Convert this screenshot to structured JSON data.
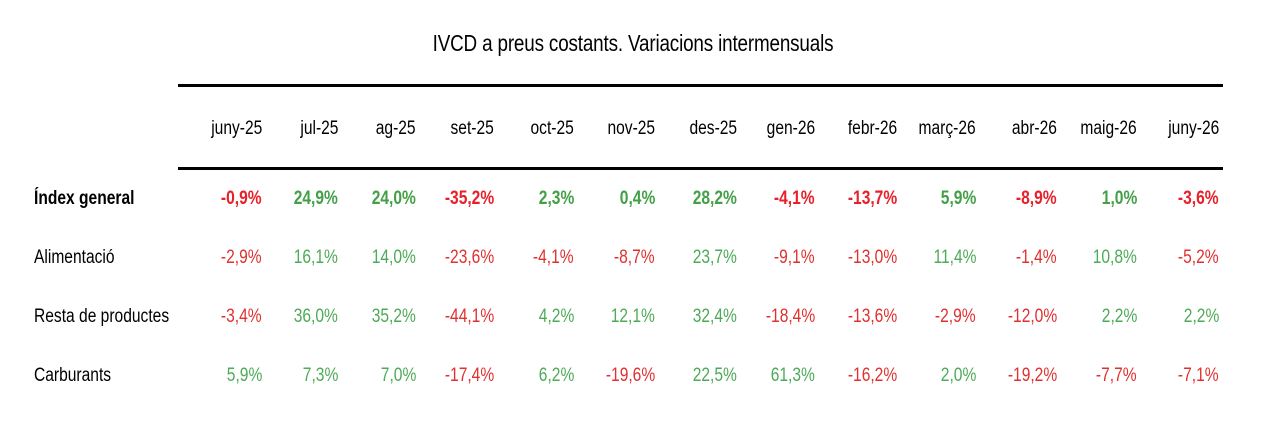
{
  "chart_data": {
    "type": "table",
    "title": "IVCD a preus costants. Variacions intermensuals",
    "columns": [
      "juny-25",
      "jul-25",
      "ag-25",
      "set-25",
      "oct-25",
      "nov-25",
      "des-25",
      "gen-26",
      "febr-26",
      "març-26",
      "abr-26",
      "maig-26",
      "juny-26"
    ],
    "rows": [
      {
        "label": "Índex general",
        "bold": true,
        "values": [
          "-0,9%",
          "24,9%",
          "24,0%",
          "-35,2%",
          "2,3%",
          "0,4%",
          "28,2%",
          "-4,1%",
          "-13,7%",
          "5,9%",
          "-8,9%",
          "1,0%",
          "-3,6%"
        ]
      },
      {
        "label": "Alimentació",
        "bold": false,
        "values": [
          "-2,9%",
          "16,1%",
          "14,0%",
          "-23,6%",
          "-4,1%",
          "-8,7%",
          "23,7%",
          "-9,1%",
          "-13,0%",
          "11,4%",
          "-1,4%",
          "10,8%",
          "-5,2%"
        ]
      },
      {
        "label": "Resta de productes",
        "bold": false,
        "values": [
          "-3,4%",
          "36,0%",
          "35,2%",
          "-44,1%",
          "4,2%",
          "12,1%",
          "32,4%",
          "-18,4%",
          "-13,6%",
          "-2,9%",
          "-12,0%",
          "2,2%",
          "2,2%"
        ]
      },
      {
        "label": "Carburants",
        "bold": false,
        "values": [
          "5,9%",
          "7,3%",
          "7,0%",
          "-17,4%",
          "6,2%",
          "-19,6%",
          "22,5%",
          "61,3%",
          "-16,2%",
          "2,0%",
          "-19,2%",
          "-7,7%",
          "-7,1%"
        ]
      }
    ],
    "colors": {
      "positive": "#4daa57",
      "negative": "#e03030"
    }
  }
}
